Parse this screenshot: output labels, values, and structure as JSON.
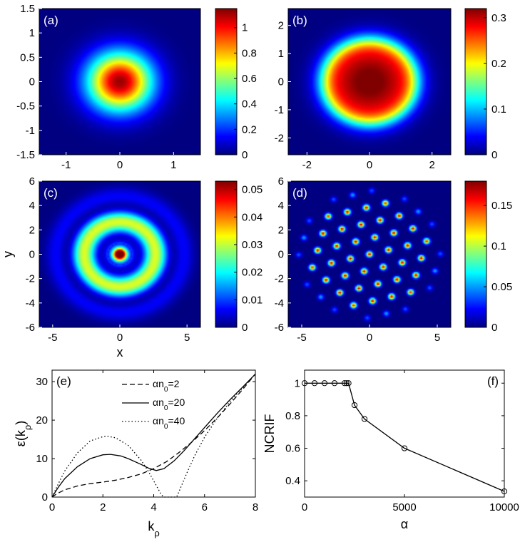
{
  "colors": {
    "frame": "#000000",
    "bg": "#00008f",
    "line": "#000000"
  },
  "heatmaps": [
    {
      "id": "a",
      "label": "(a)",
      "xlim": [
        -1.5,
        1.5
      ],
      "ylim": [
        -1.5,
        1.5
      ],
      "xticks": [
        "-1",
        "0",
        "1"
      ],
      "xtick_vals": [
        -1,
        0,
        1
      ],
      "yticks": [
        "1.5",
        "1",
        "0.5",
        "0",
        "-0.5",
        "-1",
        "-1.5"
      ],
      "ytick_vals": [
        1.5,
        1,
        0.5,
        0,
        -0.5,
        -1,
        -1.5
      ],
      "cbar_ticks": [
        "1",
        "0.8",
        "0.6",
        "0.4",
        "0.2",
        "0"
      ],
      "cbar_vals": [
        1,
        0.8,
        0.6,
        0.4,
        0.2,
        0
      ],
      "cbar_max": 1.15,
      "pattern": "gaussian",
      "xlabel": "",
      "ylabel": ""
    },
    {
      "id": "b",
      "label": "(b)",
      "xlim": [
        -2.6,
        2.6
      ],
      "ylim": [
        -2.6,
        2.6
      ],
      "xticks": [
        "-2",
        "0",
        "2"
      ],
      "xtick_vals": [
        -2,
        0,
        2
      ],
      "yticks": [
        "2",
        "1",
        "0",
        "-1",
        "-2"
      ],
      "ytick_vals": [
        2,
        1,
        0,
        -1,
        -2
      ],
      "cbar_ticks": [
        "0.3",
        "0.2",
        "0.1",
        "0"
      ],
      "cbar_vals": [
        0.3,
        0.2,
        0.1,
        0
      ],
      "cbar_max": 0.32,
      "pattern": "flattop",
      "xlabel": "",
      "ylabel": ""
    },
    {
      "id": "c",
      "label": "(c)",
      "xlim": [
        -6,
        6
      ],
      "ylim": [
        -6,
        6
      ],
      "xticks": [
        "-5",
        "0",
        "5"
      ],
      "xtick_vals": [
        -5,
        0,
        5
      ],
      "yticks": [
        "6",
        "4",
        "2",
        "0",
        "-2",
        "-4",
        "-6"
      ],
      "ytick_vals": [
        6,
        4,
        2,
        0,
        -2,
        -4,
        -6
      ],
      "cbar_ticks": [
        "0.05",
        "0.04",
        "0.03",
        "0.02",
        "0.01",
        "0"
      ],
      "cbar_vals": [
        0.05,
        0.04,
        0.03,
        0.02,
        0.01,
        0
      ],
      "cbar_max": 0.053,
      "pattern": "rings",
      "xlabel": "x",
      "ylabel": "y"
    },
    {
      "id": "d",
      "label": "(d)",
      "xlim": [
        -6,
        6
      ],
      "ylim": [
        -6,
        6
      ],
      "xticks": [
        "-5",
        "0",
        "5"
      ],
      "xtick_vals": [
        -5,
        0,
        5
      ],
      "yticks": [
        "6",
        "4",
        "2",
        "0",
        "-2",
        "-4",
        "-6"
      ],
      "ytick_vals": [
        6,
        4,
        2,
        0,
        -2,
        -4,
        -6
      ],
      "cbar_ticks": [
        "0.15",
        "0.1",
        "0.05",
        "0"
      ],
      "cbar_vals": [
        0.15,
        0.1,
        0.05,
        0
      ],
      "cbar_max": 0.18,
      "pattern": "lattice",
      "xlabel": "",
      "ylabel": ""
    }
  ],
  "chart_data": [
    {
      "type": "line",
      "label": "(e)",
      "xlabel": "k",
      "xlabel_sub": "ρ",
      "ylabel": "ε(k",
      "ylabel_sub": "ρ",
      "ylabel_tail": ")",
      "xlim": [
        0,
        8
      ],
      "ylim": [
        0,
        33
      ],
      "xticks": [
        "0",
        "2",
        "4",
        "6",
        "8"
      ],
      "xtick_vals": [
        0,
        2,
        4,
        6,
        8
      ],
      "yticks": [
        "0",
        "10",
        "20",
        "30"
      ],
      "ytick_vals": [
        0,
        10,
        20,
        30
      ],
      "series": [
        {
          "name": "αn",
          "sub": "0",
          "tail": "=2",
          "style": "dashed",
          "x": [
            0,
            0.2,
            0.5,
            1,
            1.5,
            2,
            2.5,
            3,
            3.5,
            4,
            4.5,
            5,
            5.5,
            6,
            6.5,
            7,
            7.5,
            8
          ],
          "y": [
            0,
            0.9,
            1.9,
            2.9,
            3.5,
            3.9,
            4.4,
            5.1,
            6.0,
            7.4,
            9.2,
            11.6,
            14.3,
            17.3,
            20.6,
            24.2,
            28.0,
            32.0
          ]
        },
        {
          "name": "αn",
          "sub": "0",
          "tail": "=20",
          "style": "solid",
          "x": [
            0,
            0.25,
            0.5,
            1,
            1.5,
            2,
            2.3,
            2.7,
            3,
            3.5,
            3.8,
            4.1,
            4.4,
            4.8,
            5.2,
            5.6,
            6,
            6.5,
            7,
            7.5,
            8
          ],
          "y": [
            0,
            2.6,
            4.8,
            7.9,
            10.0,
            11.0,
            11.1,
            10.7,
            10.0,
            8.5,
            7.5,
            6.9,
            7.4,
            9.4,
            12.1,
            15.1,
            18.1,
            21.8,
            25.3,
            28.6,
            32.0
          ]
        },
        {
          "name": "αn",
          "sub": "0",
          "tail": "=40",
          "style": "dotted",
          "x": [
            0,
            0.25,
            0.5,
            1,
            1.5,
            2,
            2.2,
            2.5,
            3,
            3.5,
            3.8,
            4.1,
            4.3,
            4.4,
            4.9,
            5.0,
            5.3,
            5.6,
            6,
            6.5,
            7,
            7.5,
            8
          ],
          "y": [
            0,
            3.5,
            6.8,
            11.5,
            14.6,
            15.7,
            15.8,
            15.4,
            13.4,
            9.6,
            6.6,
            3.0,
            0.6,
            0,
            0,
            1.5,
            6.2,
            10.6,
            15.6,
            20.5,
            24.8,
            28.4,
            32.0
          ]
        }
      ]
    },
    {
      "type": "line",
      "label": "(f)",
      "xlabel": "α",
      "ylabel": "NCRIF",
      "xlim": [
        0,
        10000
      ],
      "ylim": [
        0.3,
        1.08
      ],
      "xticks": [
        "0",
        "5000",
        "10000"
      ],
      "xtick_vals": [
        0,
        5000,
        10000
      ],
      "yticks": [
        "0.4",
        "0.6",
        "0.8",
        "1"
      ],
      "ytick_vals": [
        0.4,
        0.6,
        0.8,
        1
      ],
      "series": [
        {
          "name": "NCRIF",
          "style": "solid-markers",
          "x": [
            0,
            500,
            1000,
            1500,
            2000,
            2100,
            2200,
            2500,
            3000,
            5000,
            10000
          ],
          "y": [
            1.0,
            1.0,
            1.0,
            1.0,
            1.0,
            1.0,
            1.0,
            0.865,
            0.78,
            0.6,
            0.335
          ]
        }
      ]
    }
  ]
}
